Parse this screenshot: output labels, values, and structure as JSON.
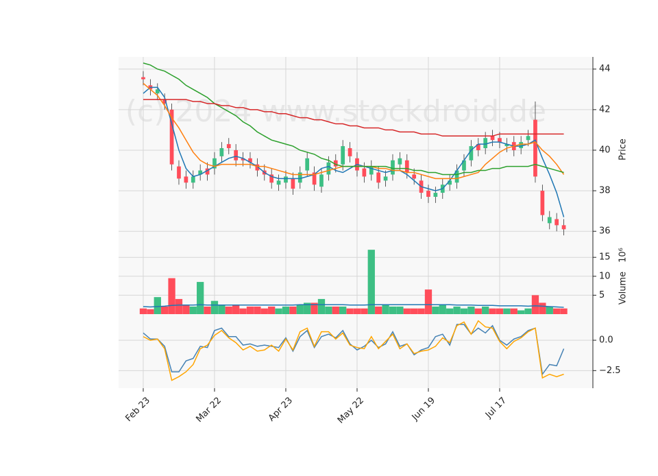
{
  "chart_data": {
    "type": "candlestick",
    "watermark": "(c) 2024 www.stockdroid.de",
    "y_label": "Price",
    "volume_label": "Volume",
    "volume_exponent": "10⁶",
    "xlim": [
      -3.46,
      63.08
    ],
    "xticks": [
      {
        "value": 0,
        "label": "Feb 23"
      },
      {
        "value": 10,
        "label": "Mar 22"
      },
      {
        "value": 20,
        "label": "Apr 23"
      },
      {
        "value": 30,
        "label": "May 22"
      },
      {
        "value": 40,
        "label": "Jun 19"
      },
      {
        "value": 50,
        "label": "Jul 17"
      }
    ],
    "ylim": [
      35.5,
      44.6
    ],
    "yticks": [
      36,
      38,
      40,
      42,
      44
    ],
    "grid": true,
    "up_color": "#3dbf84",
    "down_color": "#ff4d5a",
    "open": [
      43.6,
      43.2,
      42.8,
      42.5,
      42.0,
      39.2,
      38.7,
      38.4,
      38.8,
      39.1,
      39.1,
      39.7,
      40.3,
      40.0,
      39.6,
      39.6,
      39.3,
      39.0,
      38.8,
      38.3,
      38.4,
      38.6,
      38.4,
      39.0,
      38.9,
      38.2,
      38.8,
      39.5,
      39.3,
      40.1,
      39.6,
      39.1,
      38.8,
      38.9,
      38.5,
      38.8,
      39.3,
      39.5,
      38.8,
      38.5,
      38.0,
      37.7,
      37.9,
      38.3,
      38.4,
      39.0,
      39.5,
      40.3,
      40.1,
      40.7,
      40.6,
      40.2,
      40.4,
      40.1,
      40.5,
      41.5,
      38.0,
      36.4,
      36.6,
      36.3
    ],
    "high": [
      43.9,
      43.5,
      43.3,
      42.8,
      42.3,
      39.5,
      39.0,
      39.0,
      39.3,
      39.4,
      39.9,
      40.4,
      40.6,
      40.3,
      39.9,
      39.9,
      39.6,
      39.3,
      39.1,
      38.8,
      39.0,
      38.9,
      39.2,
      39.9,
      39.2,
      39.1,
      39.7,
      39.8,
      40.5,
      40.4,
      39.9,
      39.4,
      39.5,
      39.2,
      39.0,
      39.8,
      39.9,
      39.8,
      39.1,
      38.8,
      38.3,
      38.2,
      38.6,
      38.8,
      39.3,
      39.8,
      40.5,
      40.6,
      40.9,
      41.0,
      40.9,
      40.6,
      40.7,
      40.7,
      41.0,
      42.4,
      38.3,
      37.0,
      36.9,
      36.6
    ],
    "low": [
      43.2,
      42.7,
      42.5,
      42.0,
      39.0,
      38.3,
      38.1,
      38.1,
      38.5,
      38.5,
      38.8,
      39.4,
      39.8,
      39.2,
      39.2,
      39.1,
      38.7,
      38.5,
      38.1,
      38.0,
      38.1,
      37.8,
      38.1,
      38.7,
      38.0,
      37.9,
      38.5,
      38.9,
      39.0,
      39.4,
      38.7,
      38.4,
      38.5,
      38.1,
      38.2,
      38.5,
      39.0,
      38.6,
      38.3,
      37.6,
      37.4,
      37.4,
      37.6,
      38.0,
      38.1,
      38.7,
      39.2,
      39.7,
      39.8,
      40.2,
      40.1,
      39.9,
      39.7,
      39.8,
      40.2,
      38.4,
      36.5,
      36.1,
      36.0,
      35.8
    ],
    "close": [
      43.5,
      43.0,
      43.0,
      42.3,
      39.3,
      38.6,
      38.4,
      38.7,
      39.0,
      38.8,
      39.6,
      40.1,
      40.1,
      39.5,
      39.5,
      39.4,
      39.0,
      38.8,
      38.4,
      38.5,
      38.7,
      38.1,
      38.9,
      39.6,
      38.3,
      38.8,
      39.4,
      39.2,
      40.2,
      39.7,
      39.0,
      38.7,
      39.2,
      38.4,
      38.7,
      39.5,
      39.6,
      38.9,
      38.6,
      37.9,
      37.7,
      37.9,
      38.3,
      38.5,
      39.0,
      39.5,
      40.2,
      40.0,
      40.6,
      40.5,
      40.4,
      40.3,
      40.0,
      40.4,
      40.7,
      38.7,
      36.8,
      36.7,
      36.3,
      36.1
    ],
    "price_lines": [
      {
        "color": "#1f77b4",
        "values": [
          42.8,
          43.1,
          43.1,
          42.6,
          41.3,
          40.0,
          39.1,
          38.7,
          38.8,
          39.0,
          39.2,
          39.4,
          39.6,
          39.7,
          39.6,
          39.4,
          39.2,
          38.9,
          38.7,
          38.6,
          38.6,
          38.6,
          38.6,
          38.7,
          38.8,
          39.1,
          39.2,
          39.0,
          38.9,
          39.1,
          39.3,
          39.2,
          39.1,
          39.0,
          38.9,
          39.0,
          39.0,
          38.8,
          38.5,
          38.2,
          38.1,
          38.0,
          38.1,
          38.5,
          39.0,
          39.5,
          40.0,
          40.3,
          40.3,
          40.4,
          40.4,
          40.3,
          40.2,
          40.2,
          40.3,
          40.5,
          39.6,
          38.8,
          37.9,
          36.7
        ]
      },
      {
        "color": "#ff7f0e",
        "values": [
          43.3,
          43.0,
          42.7,
          42.2,
          41.6,
          41.1,
          40.5,
          39.9,
          39.5,
          39.3,
          39.2,
          39.3,
          39.3,
          39.3,
          39.3,
          39.3,
          39.2,
          39.2,
          39.1,
          39.0,
          38.9,
          38.8,
          38.8,
          38.8,
          38.8,
          38.9,
          39.0,
          39.1,
          39.2,
          39.2,
          39.2,
          39.2,
          39.2,
          39.1,
          39.1,
          39.0,
          39.0,
          38.9,
          38.9,
          38.8,
          38.7,
          38.6,
          38.6,
          38.6,
          38.6,
          38.7,
          38.8,
          38.9,
          39.3,
          39.6,
          39.9,
          40.1,
          40.2,
          40.3,
          40.3,
          40.4,
          40.0,
          39.7,
          39.3,
          38.8
        ]
      },
      {
        "color": "#2ca02c",
        "values": [
          44.3,
          44.2,
          44.0,
          43.9,
          43.7,
          43.5,
          43.2,
          43.0,
          42.8,
          42.6,
          42.3,
          42.1,
          41.9,
          41.7,
          41.4,
          41.2,
          40.9,
          40.7,
          40.5,
          40.4,
          40.3,
          40.2,
          40.0,
          39.9,
          39.8,
          39.6,
          39.5,
          39.3,
          39.2,
          39.2,
          39.2,
          39.2,
          39.2,
          39.2,
          39.2,
          39.1,
          39.1,
          39.1,
          39.0,
          39.0,
          38.9,
          38.9,
          38.8,
          38.8,
          38.8,
          38.9,
          38.9,
          39.0,
          39.0,
          39.1,
          39.1,
          39.2,
          39.2,
          39.2,
          39.2,
          39.3,
          39.2,
          39.1,
          39.0,
          38.9
        ]
      },
      {
        "color": "#d62728",
        "values": [
          42.5,
          42.5,
          42.5,
          42.5,
          42.5,
          42.5,
          42.5,
          42.4,
          42.4,
          42.3,
          42.3,
          42.2,
          42.2,
          42.1,
          42.1,
          42.0,
          42.0,
          41.9,
          41.9,
          41.8,
          41.8,
          41.7,
          41.6,
          41.6,
          41.5,
          41.5,
          41.4,
          41.3,
          41.3,
          41.2,
          41.2,
          41.1,
          41.1,
          41.1,
          41.0,
          41.0,
          40.9,
          40.9,
          40.9,
          40.8,
          40.8,
          40.8,
          40.7,
          40.7,
          40.7,
          40.7,
          40.7,
          40.7,
          40.7,
          40.7,
          40.8,
          40.8,
          40.8,
          40.8,
          40.8,
          40.8,
          40.8,
          40.8,
          40.8,
          40.8
        ]
      }
    ],
    "volume": {
      "ylim": [
        0,
        19.2
      ],
      "yticks": [
        5,
        10,
        15
      ],
      "values": [
        1.5,
        1.3,
        4.5,
        2.0,
        9.5,
        4.0,
        2.5,
        2.0,
        8.5,
        2.0,
        3.5,
        2.5,
        2.0,
        2.5,
        1.5,
        2.0,
        2.0,
        1.5,
        2.0,
        1.5,
        2.0,
        2.0,
        2.5,
        3.0,
        3.0,
        4.0,
        2.0,
        2.0,
        2.0,
        1.5,
        1.5,
        1.5,
        17.0,
        2.0,
        2.5,
        2.0,
        2.0,
        1.5,
        1.5,
        1.5,
        6.5,
        2.0,
        2.5,
        1.5,
        2.0,
        1.5,
        2.0,
        1.5,
        2.0,
        1.5,
        1.5,
        1.5,
        1.5,
        1.0,
        1.5,
        5.0,
        3.0,
        2.0,
        1.5,
        1.5
      ],
      "ma": {
        "color": "#1f77b4",
        "values": [
          2.0,
          1.9,
          2.0,
          2.1,
          2.3,
          2.4,
          2.4,
          2.4,
          2.5,
          2.4,
          2.4,
          2.4,
          2.4,
          2.4,
          2.4,
          2.4,
          2.4,
          2.4,
          2.4,
          2.4,
          2.4,
          2.4,
          2.5,
          2.5,
          2.5,
          2.5,
          2.5,
          2.5,
          2.5,
          2.4,
          2.4,
          2.4,
          2.5,
          2.5,
          2.5,
          2.5,
          2.5,
          2.5,
          2.5,
          2.5,
          2.5,
          2.5,
          2.5,
          2.5,
          2.4,
          2.4,
          2.4,
          2.3,
          2.3,
          2.3,
          2.2,
          2.2,
          2.2,
          2.2,
          2.1,
          2.2,
          2.1,
          2.0,
          1.9,
          1.8
        ]
      }
    },
    "oscillator": {
      "ylim": [
        -3.95,
        2.15
      ],
      "yticks": [
        {
          "value": 0,
          "label": "0.0"
        },
        {
          "value": -2.5,
          "label": "−2.5"
        }
      ],
      "series": [
        {
          "color": "#4682b4",
          "values": [
            0.6,
            0.1,
            0.1,
            -0.5,
            -2.6,
            -2.6,
            -1.7,
            -1.5,
            -0.5,
            -0.6,
            0.8,
            1.0,
            0.3,
            0.3,
            -0.4,
            -0.3,
            -0.5,
            -0.4,
            -0.5,
            -0.6,
            0.2,
            -0.9,
            0.3,
            0.8,
            -0.6,
            0.3,
            0.5,
            0.2,
            0.8,
            -0.3,
            -0.8,
            -0.5,
            0.0,
            -0.6,
            -0.3,
            0.7,
            -0.5,
            -0.3,
            -1.2,
            -0.8,
            -0.6,
            0.3,
            0.5,
            -0.4,
            1.3,
            1.3,
            0.5,
            1.0,
            0.6,
            1.2,
            0.0,
            -0.4,
            0.1,
            0.3,
            0.8,
            1.0,
            -2.8,
            -2.0,
            -2.1,
            -0.7
          ]
        },
        {
          "color": "#ffa500",
          "values": [
            0.3,
            0.0,
            0.1,
            -0.7,
            -3.3,
            -3.0,
            -2.6,
            -2.0,
            -0.7,
            -0.4,
            0.4,
            0.8,
            0.2,
            -0.2,
            -0.8,
            -0.5,
            -0.9,
            -0.8,
            -0.4,
            -0.9,
            0.1,
            -0.8,
            0.7,
            1.0,
            -0.5,
            0.7,
            0.7,
            0.1,
            0.6,
            -0.4,
            -0.6,
            -0.7,
            0.3,
            -0.7,
            -0.1,
            0.5,
            -0.7,
            -0.3,
            -1.1,
            -0.9,
            -0.8,
            -0.5,
            0.2,
            -0.2,
            1.2,
            1.5,
            0.5,
            1.6,
            1.1,
            1.0,
            -0.1,
            -0.7,
            -0.1,
            0.2,
            0.7,
            1.0,
            -3.1,
            -2.8,
            -3.0,
            -2.8
          ]
        }
      ]
    }
  }
}
